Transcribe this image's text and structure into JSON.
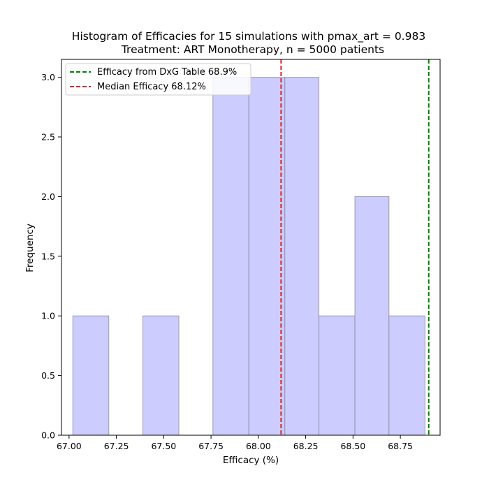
{
  "chart_data": {
    "type": "bar",
    "title": "Histogram of Efficacies for 15 simulations with pmax_art = 0.983",
    "subtitle": "Treatment: ART Monotherapy, n = 5000 patients",
    "xlabel": "Efficacy (%)",
    "ylabel": "Frequency",
    "xlim": [
      66.96,
      68.96
    ],
    "ylim": [
      0,
      3.15
    ],
    "xticks": [
      "67.00",
      "67.25",
      "67.50",
      "67.75",
      "68.00",
      "68.25",
      "68.50",
      "68.75"
    ],
    "yticks": [
      "0.0",
      "0.5",
      "1.0",
      "1.5",
      "2.0",
      "2.5",
      "3.0"
    ],
    "bins": [
      {
        "x0": 67.02,
        "x1": 67.21,
        "count": 1
      },
      {
        "x0": 67.21,
        "x1": 67.39,
        "count": 0
      },
      {
        "x0": 67.39,
        "x1": 67.58,
        "count": 1
      },
      {
        "x0": 67.58,
        "x1": 67.76,
        "count": 0
      },
      {
        "x0": 67.76,
        "x1": 67.95,
        "count": 3
      },
      {
        "x0": 67.95,
        "x1": 68.14,
        "count": 3
      },
      {
        "x0": 68.14,
        "x1": 68.32,
        "count": 3
      },
      {
        "x0": 68.32,
        "x1": 68.51,
        "count": 1
      },
      {
        "x0": 68.51,
        "x1": 68.69,
        "count": 2
      },
      {
        "x0": 68.69,
        "x1": 68.88,
        "count": 1
      }
    ],
    "bar_color": "#ccccff",
    "bar_edge_color": "#888899",
    "reference_lines": [
      {
        "label": "Efficacy from DxG Table 68.9%",
        "x": 68.9,
        "color": "#008000"
      },
      {
        "label": "Median Efficacy 68.12%",
        "x": 68.12,
        "color": "#d62728"
      }
    ],
    "legend_position": "top-left",
    "grid": false
  }
}
